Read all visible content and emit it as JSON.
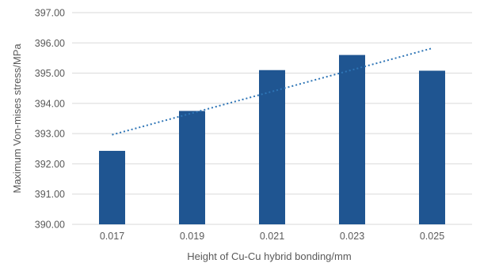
{
  "chart_data": {
    "type": "bar",
    "categories": [
      "0.017",
      "0.019",
      "0.021",
      "0.023",
      "0.025"
    ],
    "x": [
      0.017,
      0.019,
      0.021,
      0.023,
      0.025
    ],
    "series": [
      {
        "values": [
          392.43,
          393.75,
          395.1,
          395.6,
          395.08
        ]
      }
    ],
    "trendline": {
      "type": "linear",
      "style": "dotted"
    },
    "xlabel": "Height of Cu-Cu hybrid bonding/mm",
    "ylabel": "Maximum Von-mises stress/MPa",
    "ylim": [
      390,
      397
    ],
    "yticks": [
      "390.00",
      "391.00",
      "392.00",
      "393.00",
      "394.00",
      "395.00",
      "396.00",
      "397.00"
    ],
    "grid": true,
    "legend": "none",
    "colors": {
      "bar": "#1f5591",
      "trendline": "#2e75b6",
      "grid": "#d9d9d9",
      "text": "#595959"
    }
  }
}
